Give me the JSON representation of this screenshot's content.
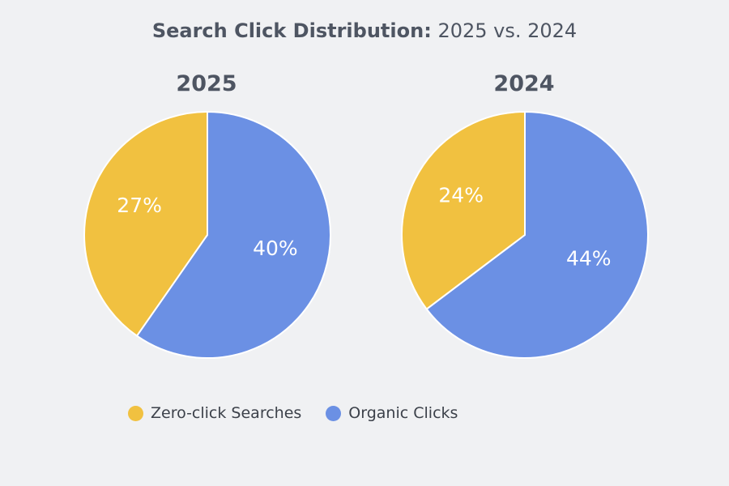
{
  "title": {
    "bold": "Search Click Distribution:",
    "rest": "2025 vs. 2024"
  },
  "legend_labels": {
    "zero_click": "Zero-click Searches",
    "organic": "Organic Clicks"
  },
  "colors": {
    "zero_click": "#f1c140",
    "organic": "#6b90e4",
    "background": "#f0f1f3"
  },
  "chart_data": [
    {
      "type": "pie",
      "title": "2025",
      "slices": [
        {
          "name": "Zero-click Searches",
          "label": "27%",
          "value": 27
        },
        {
          "name": "Organic Clicks",
          "label": "40%",
          "value": 40
        }
      ]
    },
    {
      "type": "pie",
      "title": "2024",
      "slices": [
        {
          "name": "Zero-click Searches",
          "label": "24%",
          "value": 24
        },
        {
          "name": "Organic Clicks",
          "label": "44%",
          "value": 44
        }
      ]
    }
  ]
}
